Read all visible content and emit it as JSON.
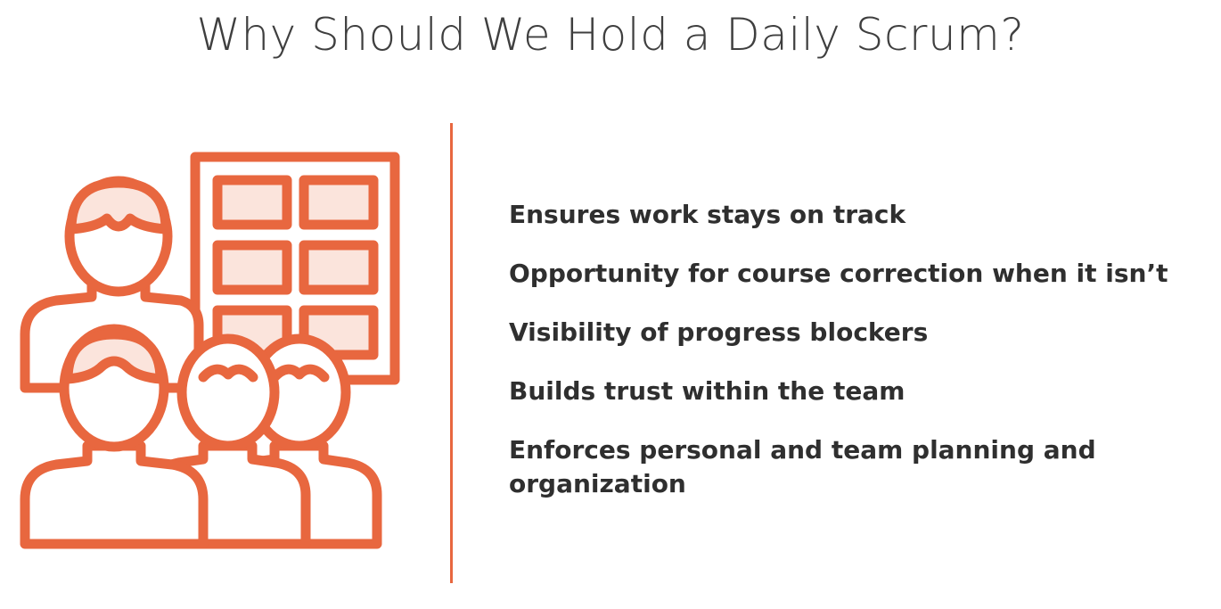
{
  "slide": {
    "title": "Why Should We Hold a Daily Scrum?",
    "illustration_icon": "team-board-icon",
    "accent_color": "#e8673f",
    "accent_fill_color": "#fbe4dc",
    "bullets": [
      "Ensures work stays on track",
      "Opportunity for course correction when it isn’t",
      "Visibility of progress blockers",
      "Builds trust within the team",
      "Enforces personal and team planning and organization"
    ]
  }
}
